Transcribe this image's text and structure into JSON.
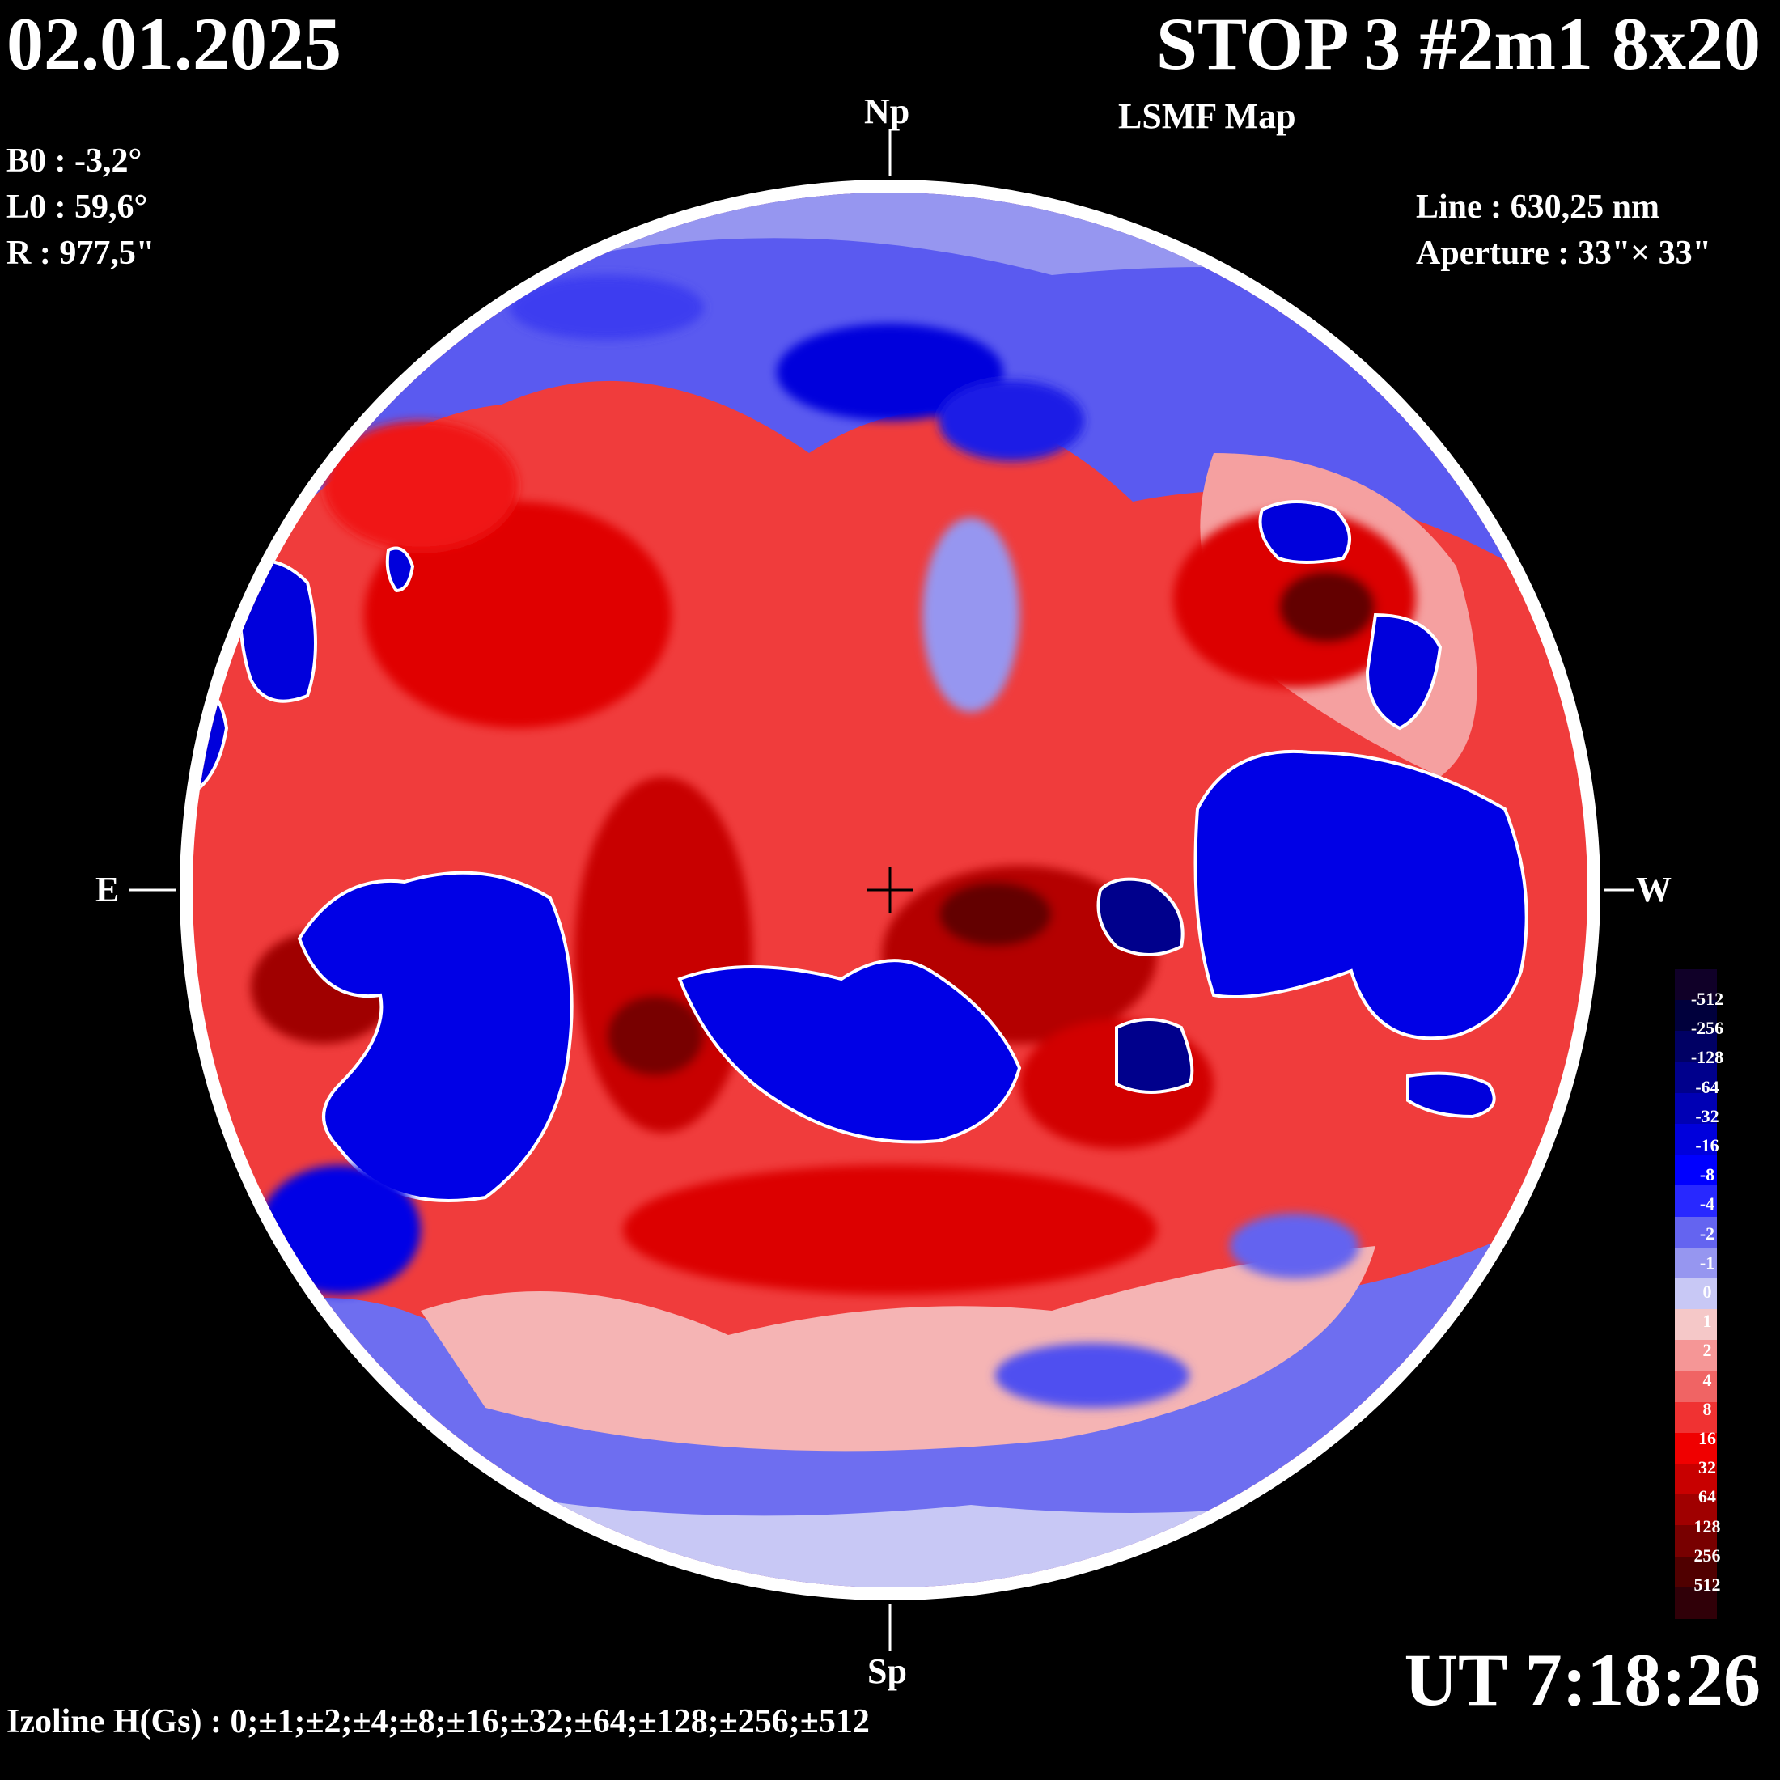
{
  "header": {
    "date": "02.01.2025",
    "title": "STOP 3 #2m1 8x20",
    "subtitle": "LSMF  Map"
  },
  "params": {
    "b0": "B0 : -3,2°",
    "l0": "L0 : 59,6°",
    "r": "R  : 977,5\"",
    "line": "Line :  630,25 nm",
    "aperture": "Aperture : 33\"× 33\""
  },
  "compass": {
    "north": "Np",
    "south": "Sp",
    "east": "E",
    "west": "W"
  },
  "footer": {
    "time": "UT 7:18:26",
    "izoline": "Izoline H(Gs) : 0;±1;±2;±4;±8;±16;±32;±64;±128;±256;±512"
  },
  "colors": {
    "background": "#000000",
    "negative_strong": "#00003c",
    "negative_mid": "#0000e6",
    "negative_weak": "#c8c8f5",
    "positive_weak": "#f5c8c8",
    "positive_mid": "#f01010",
    "positive_strong": "#3c0000",
    "isoline_zero": "#ffffff"
  },
  "colorbar": {
    "labels": [
      "-512",
      "-256",
      "-128",
      "-64",
      "-32",
      "-16",
      "-8",
      "-4",
      "-2",
      "-1",
      "0",
      "1",
      "2",
      "4",
      "8",
      "16",
      "32",
      "64",
      "128",
      "256",
      "512"
    ],
    "colors": [
      "#100028",
      "#00003c",
      "#000064",
      "#00008c",
      "#0000b4",
      "#0000dc",
      "#0000ff",
      "#2828ff",
      "#6464f0",
      "#9696f0",
      "#c8c8f5",
      "#f5c8c8",
      "#f59696",
      "#f06464",
      "#f03232",
      "#f00000",
      "#c80000",
      "#a00000",
      "#780000",
      "#500000",
      "#300008"
    ]
  }
}
